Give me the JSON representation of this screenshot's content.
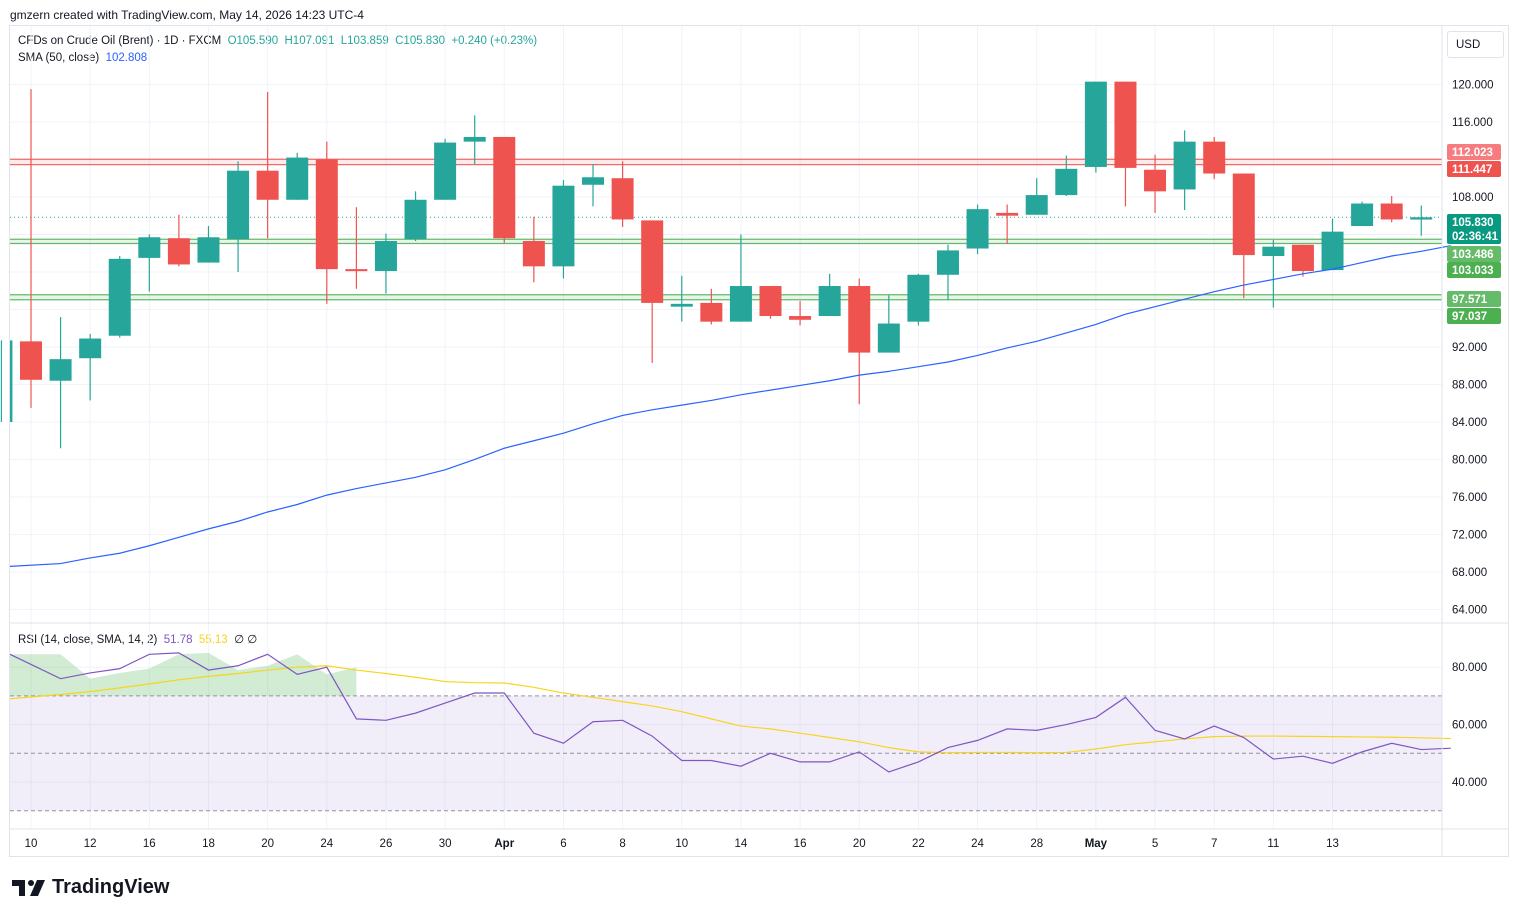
{
  "header": {
    "text": "gmzern created with TradingView.com, May 14, 2026 14:23 UTC-4"
  },
  "legend": {
    "symbol": "CFDs on Crude Oil (Brent) · 1D · FXCM",
    "open": "O105.590",
    "high": "H107.091",
    "low": "L103.859",
    "close": "C105.830",
    "change": "+0.240 (+0.23%)",
    "sma_label": "SMA (50, close)",
    "sma_value": "102.808",
    "rsi_label": "RSI (14, close, SMA, 14, 2)",
    "rsi_value": "51.78",
    "rsi_ma_value": "55.13",
    "rsi_extra": "∅ ∅"
  },
  "currency": "USD",
  "brand": "TradingView",
  "colors": {
    "up": "#26a69a",
    "down": "#ef5350",
    "sma": "#2962ff",
    "rsi": "#7e57c2",
    "rsi_ma": "#f7d51d",
    "resistance": "#ef5350",
    "support": "#4caf50"
  },
  "price_labels": [
    {
      "text": "112.023",
      "value": 112.023,
      "color": "#f77c80"
    },
    {
      "text": "111.447",
      "value": 111.447,
      "color": "#ef5350"
    },
    {
      "text": "105.830",
      "value": 105.83,
      "color": "#089981"
    },
    {
      "text": "02:36:41",
      "value": 104.5,
      "color": "#089981"
    },
    {
      "text": "103.486",
      "value": 103.486,
      "color": "#66bb6a"
    },
    {
      "text": "103.033",
      "value": 103.033,
      "color": "#4caf50"
    },
    {
      "text": "97.571",
      "value": 97.571,
      "color": "#66bb6a"
    },
    {
      "text": "97.037",
      "value": 97.037,
      "color": "#4caf50"
    }
  ],
  "chart_data": [
    {
      "type": "candlestick",
      "title": "CFDs on Crude Oil (Brent) · 1D · FXCM",
      "ylim": [
        62.5,
        123.5
      ],
      "y_ticks": [
        "64.000",
        "68.000",
        "72.000",
        "76.000",
        "80.000",
        "84.000",
        "88.000",
        "92.000",
        "108.000",
        "116.000",
        "120.000"
      ],
      "y_tick_values": [
        64,
        68,
        72,
        76,
        80,
        84,
        88,
        92,
        108,
        116,
        120
      ],
      "x_ticks": [
        "10",
        "12",
        "16",
        "18",
        "20",
        "24",
        "26",
        "30",
        "Apr",
        "6",
        "8",
        "10",
        "14",
        "16",
        "20",
        "22",
        "24",
        "28",
        "May",
        "5",
        "7",
        "11",
        "13"
      ],
      "x_tick_index": [
        1,
        3,
        5,
        7,
        9,
        11,
        13,
        15,
        17,
        19,
        21,
        23,
        25,
        27,
        29,
        31,
        33,
        35,
        37,
        39,
        41,
        43,
        45
      ],
      "horizontal_levels": [
        {
          "value": 112.023,
          "kind": "resistance"
        },
        {
          "value": 111.447,
          "kind": "resistance"
        },
        {
          "value": 103.486,
          "kind": "support"
        },
        {
          "value": 103.033,
          "kind": "support"
        },
        {
          "value": 97.571,
          "kind": "support"
        },
        {
          "value": 97.037,
          "kind": "support"
        }
      ],
      "last_price_line": 105.83,
      "candles": [
        {
          "o": 84.0,
          "h": 92.7,
          "l": 84.0,
          "c": 92.7
        },
        {
          "o": 92.6,
          "h": 119.5,
          "l": 85.5,
          "c": 88.5
        },
        {
          "o": 88.4,
          "h": 95.2,
          "l": 81.2,
          "c": 90.7
        },
        {
          "o": 90.8,
          "h": 93.4,
          "l": 86.3,
          "c": 92.9
        },
        {
          "o": 93.2,
          "h": 101.7,
          "l": 93.0,
          "c": 101.4
        },
        {
          "o": 101.5,
          "h": 104.0,
          "l": 97.9,
          "c": 103.7
        },
        {
          "o": 103.6,
          "h": 106.1,
          "l": 100.6,
          "c": 100.8
        },
        {
          "o": 101.0,
          "h": 104.9,
          "l": 101.0,
          "c": 103.7
        },
        {
          "o": 103.5,
          "h": 111.8,
          "l": 100.0,
          "c": 110.8
        },
        {
          "o": 110.8,
          "h": 119.2,
          "l": 103.6,
          "c": 107.7
        },
        {
          "o": 107.7,
          "h": 112.7,
          "l": 107.7,
          "c": 112.2
        },
        {
          "o": 112.0,
          "h": 113.9,
          "l": 96.6,
          "c": 100.3
        },
        {
          "o": 100.3,
          "h": 106.9,
          "l": 98.2,
          "c": 100.1
        },
        {
          "o": 100.1,
          "h": 104.1,
          "l": 97.7,
          "c": 103.3
        },
        {
          "o": 103.5,
          "h": 108.6,
          "l": 103.3,
          "c": 107.7
        },
        {
          "o": 107.7,
          "h": 114.2,
          "l": 107.7,
          "c": 113.8
        },
        {
          "o": 113.9,
          "h": 116.7,
          "l": 111.5,
          "c": 114.4
        },
        {
          "o": 114.4,
          "h": 114.4,
          "l": 103.1,
          "c": 103.6
        },
        {
          "o": 103.3,
          "h": 105.9,
          "l": 98.9,
          "c": 100.6
        },
        {
          "o": 100.6,
          "h": 109.8,
          "l": 99.3,
          "c": 109.2
        },
        {
          "o": 109.3,
          "h": 111.5,
          "l": 107.0,
          "c": 110.1
        },
        {
          "o": 110.0,
          "h": 111.8,
          "l": 104.8,
          "c": 105.6
        },
        {
          "o": 105.5,
          "h": 105.5,
          "l": 90.3,
          "c": 96.7
        },
        {
          "o": 96.3,
          "h": 99.6,
          "l": 94.7,
          "c": 96.6
        },
        {
          "o": 96.7,
          "h": 98.2,
          "l": 94.4,
          "c": 94.7
        },
        {
          "o": 94.7,
          "h": 104.0,
          "l": 94.7,
          "c": 98.5
        },
        {
          "o": 98.5,
          "h": 98.5,
          "l": 95.0,
          "c": 95.3
        },
        {
          "o": 95.3,
          "h": 96.9,
          "l": 94.3,
          "c": 94.9
        },
        {
          "o": 95.3,
          "h": 99.8,
          "l": 95.3,
          "c": 98.5
        },
        {
          "o": 98.5,
          "h": 99.3,
          "l": 85.9,
          "c": 91.4
        },
        {
          "o": 91.4,
          "h": 97.5,
          "l": 91.4,
          "c": 94.5
        },
        {
          "o": 94.7,
          "h": 99.8,
          "l": 94.3,
          "c": 99.7
        },
        {
          "o": 99.7,
          "h": 102.9,
          "l": 97.0,
          "c": 102.3
        },
        {
          "o": 102.5,
          "h": 107.2,
          "l": 101.9,
          "c": 106.7
        },
        {
          "o": 106.3,
          "h": 107.2,
          "l": 103.0,
          "c": 106.0
        },
        {
          "o": 106.1,
          "h": 110.0,
          "l": 106.1,
          "c": 108.2
        },
        {
          "o": 108.2,
          "h": 112.4,
          "l": 108.1,
          "c": 111.0
        },
        {
          "o": 111.2,
          "h": 120.3,
          "l": 110.6,
          "c": 120.3
        },
        {
          "o": 120.3,
          "h": 120.3,
          "l": 107.0,
          "c": 111.1
        },
        {
          "o": 110.9,
          "h": 112.5,
          "l": 106.3,
          "c": 108.6
        },
        {
          "o": 108.8,
          "h": 115.1,
          "l": 106.6,
          "c": 113.9
        },
        {
          "o": 113.9,
          "h": 114.4,
          "l": 109.9,
          "c": 110.5
        },
        {
          "o": 110.5,
          "h": 110.5,
          "l": 97.2,
          "c": 101.8
        },
        {
          "o": 101.7,
          "h": 103.4,
          "l": 96.2,
          "c": 102.7
        },
        {
          "o": 102.9,
          "h": 102.9,
          "l": 99.5,
          "c": 100.1
        },
        {
          "o": 100.2,
          "h": 105.7,
          "l": 100.2,
          "c": 104.3
        },
        {
          "o": 104.9,
          "h": 107.5,
          "l": 104.9,
          "c": 107.3
        },
        {
          "o": 107.3,
          "h": 108.1,
          "l": 105.3,
          "c": 105.6
        },
        {
          "o": 105.59,
          "h": 107.091,
          "l": 103.859,
          "c": 105.83
        }
      ],
      "sma": {
        "name": "SMA (50, close)",
        "values": [
          68.6,
          68.9,
          69.5,
          70.0,
          70.8,
          71.7,
          72.6,
          73.4,
          74.4,
          75.2,
          76.2,
          76.9,
          77.5,
          78.1,
          78.9,
          80.0,
          81.2,
          82.0,
          82.8,
          83.8,
          84.7,
          85.3,
          85.8,
          86.3,
          86.9,
          87.4,
          87.9,
          88.4,
          89.0,
          89.4,
          89.9,
          90.4,
          91.1,
          91.9,
          92.6,
          93.5,
          94.4,
          95.5,
          96.3,
          97.1,
          97.9,
          98.6,
          99.2,
          99.8,
          100.3,
          101.0,
          101.7,
          102.2,
          102.8
        ]
      }
    },
    {
      "type": "line",
      "title": "RSI (14, close, SMA, 14, 2)",
      "ylim": [
        25.0,
        88.0
      ],
      "y_ticks": [
        "40.000",
        "60.000",
        "80.000"
      ],
      "y_tick_values": [
        40,
        60,
        80
      ],
      "band": {
        "upper": 70,
        "middle": 50,
        "lower": 30
      },
      "series": [
        {
          "name": "RSI",
          "values": [
            84.5,
            76.0,
            78.0,
            79.5,
            84.5,
            85.0,
            79.0,
            80.5,
            84.5,
            77.5,
            80.0,
            62.0,
            61.5,
            64.0,
            67.5,
            71.0,
            71.0,
            57.0,
            53.5,
            61.0,
            61.5,
            56.0,
            47.5,
            47.5,
            45.5,
            50.0,
            47.0,
            47.0,
            50.5,
            43.5,
            47.0,
            52.0,
            54.5,
            58.5,
            58.0,
            60.0,
            62.5,
            69.5,
            58.0,
            55.0,
            59.5,
            55.5,
            48.0,
            49.0,
            46.5,
            50.5,
            53.5,
            51.3,
            51.78
          ]
        },
        {
          "name": "RSI-based MA",
          "values": [
            69.0,
            70.5,
            71.5,
            72.8,
            74.2,
            75.6,
            76.8,
            77.8,
            79.0,
            80.0,
            80.5,
            79.0,
            77.8,
            76.5,
            75.0,
            74.6,
            74.5,
            73.0,
            71.0,
            69.5,
            68.0,
            66.5,
            64.5,
            62.0,
            59.5,
            58.5,
            57.0,
            55.5,
            54.0,
            52.0,
            50.5,
            50.2,
            50.3,
            50.3,
            50.2,
            50.3,
            51.5,
            53.0,
            54.0,
            55.0,
            55.8,
            56.0,
            56.0,
            55.9,
            55.8,
            55.7,
            55.6,
            55.4,
            55.13
          ]
        }
      ]
    }
  ]
}
